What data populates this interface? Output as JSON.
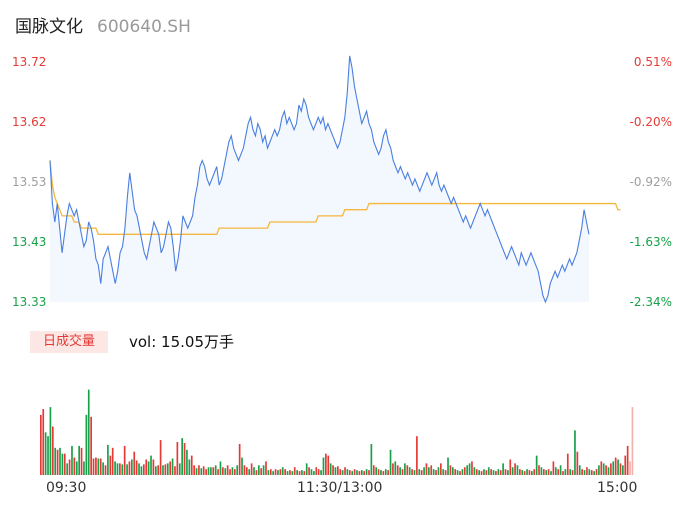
{
  "header": {
    "name": "国脉文化",
    "code": "600640.SH"
  },
  "tab": {
    "label": "日成交量"
  },
  "volume_readout": "vol: 15.05万手",
  "x_labels": [
    "09:30",
    "11:30/13:00",
    "15:00"
  ],
  "colors": {
    "price_line": "#4a7fe0",
    "avg_line": "#f5b73b",
    "area_fill": "#f3f7fe",
    "up": "#e53935",
    "down": "#19a04a",
    "neutral": "#9e9e9e"
  },
  "chart_data": [
    {
      "type": "line",
      "title": "",
      "y_left_labels": [
        "13.72",
        "13.62",
        "13.53",
        "13.43",
        "13.33"
      ],
      "y_right_labels": [
        "0.51%",
        "-0.20%",
        "-0.92%",
        "-1.63%",
        "-2.34%"
      ],
      "ylim": [
        13.33,
        13.72
      ],
      "x_count": 241,
      "series": [
        {
          "name": "price",
          "values": [
            13.56,
            13.49,
            13.46,
            13.49,
            13.45,
            13.41,
            13.44,
            13.47,
            13.49,
            13.48,
            13.47,
            13.48,
            13.46,
            13.44,
            13.42,
            13.43,
            13.46,
            13.45,
            13.43,
            13.4,
            13.39,
            13.36,
            13.4,
            13.41,
            13.42,
            13.4,
            13.38,
            13.36,
            13.38,
            13.41,
            13.42,
            13.45,
            13.5,
            13.54,
            13.51,
            13.48,
            13.47,
            13.45,
            13.43,
            13.41,
            13.4,
            13.42,
            13.44,
            13.46,
            13.45,
            13.44,
            13.41,
            13.42,
            13.44,
            13.46,
            13.45,
            13.42,
            13.38,
            13.4,
            13.43,
            13.47,
            13.46,
            13.45,
            13.46,
            13.47,
            13.5,
            13.52,
            13.55,
            13.56,
            13.55,
            13.53,
            13.52,
            13.53,
            13.54,
            13.55,
            13.52,
            13.53,
            13.55,
            13.57,
            13.59,
            13.6,
            13.58,
            13.57,
            13.56,
            13.57,
            13.58,
            13.6,
            13.62,
            13.63,
            13.61,
            13.6,
            13.62,
            13.61,
            13.59,
            13.6,
            13.58,
            13.59,
            13.6,
            13.61,
            13.6,
            13.61,
            13.63,
            13.64,
            13.62,
            13.63,
            13.62,
            13.61,
            13.62,
            13.65,
            13.64,
            13.66,
            13.65,
            13.63,
            13.62,
            13.61,
            13.62,
            13.63,
            13.62,
            13.63,
            13.61,
            13.62,
            13.61,
            13.6,
            13.59,
            13.58,
            13.59,
            13.61,
            13.63,
            13.67,
            13.73,
            13.71,
            13.68,
            13.66,
            13.64,
            13.62,
            13.63,
            13.64,
            13.62,
            13.61,
            13.59,
            13.58,
            13.57,
            13.58,
            13.6,
            13.61,
            13.59,
            13.58,
            13.56,
            13.55,
            13.54,
            13.55,
            13.54,
            13.53,
            13.54,
            13.53,
            13.52,
            13.53,
            13.52,
            13.51,
            13.52,
            13.53,
            13.54,
            13.53,
            13.52,
            13.53,
            13.54,
            13.52,
            13.51,
            13.52,
            13.51,
            13.5,
            13.49,
            13.5,
            13.49,
            13.48,
            13.47,
            13.46,
            13.47,
            13.46,
            13.45,
            13.46,
            13.47,
            13.48,
            13.49,
            13.48,
            13.47,
            13.48,
            13.47,
            13.46,
            13.45,
            13.44,
            13.43,
            13.42,
            13.41,
            13.4,
            13.41,
            13.42,
            13.41,
            13.4,
            13.39,
            13.41,
            13.4,
            13.39,
            13.4,
            13.41,
            13.4,
            13.39,
            13.38,
            13.36,
            13.34,
            13.33,
            13.34,
            13.36,
            13.37,
            13.38,
            13.37,
            13.38,
            13.39,
            13.38,
            13.39,
            13.4,
            13.39,
            13.4,
            13.41,
            13.43,
            13.45,
            13.48,
            13.46,
            13.44
          ],
          "color": "#4a7fe0"
        },
        {
          "name": "average",
          "values": [
            13.56,
            13.52,
            13.5,
            13.49,
            13.48,
            13.47,
            13.47,
            13.47,
            13.47,
            13.47,
            13.46,
            13.46,
            13.46,
            13.45,
            13.45,
            13.45,
            13.45,
            13.45,
            13.45,
            13.45,
            13.44,
            13.44,
            13.44,
            13.44,
            13.44,
            13.44,
            13.44,
            13.44,
            13.44,
            13.44,
            13.44,
            13.44,
            13.44,
            13.44,
            13.44,
            13.44,
            13.44,
            13.44,
            13.44,
            13.44,
            13.44,
            13.44,
            13.44,
            13.44,
            13.44,
            13.44,
            13.44,
            13.44,
            13.44,
            13.44,
            13.44,
            13.44,
            13.44,
            13.44,
            13.44,
            13.44,
            13.44,
            13.44,
            13.44,
            13.44,
            13.44,
            13.44,
            13.44,
            13.44,
            13.44,
            13.44,
            13.44,
            13.44,
            13.44,
            13.44,
            13.45,
            13.45,
            13.45,
            13.45,
            13.45,
            13.45,
            13.45,
            13.45,
            13.45,
            13.45,
            13.45,
            13.45,
            13.45,
            13.45,
            13.45,
            13.45,
            13.45,
            13.45,
            13.45,
            13.45,
            13.45,
            13.46,
            13.46,
            13.46,
            13.46,
            13.46,
            13.46,
            13.46,
            13.46,
            13.46,
            13.46,
            13.46,
            13.46,
            13.46,
            13.46,
            13.46,
            13.46,
            13.46,
            13.46,
            13.46,
            13.46,
            13.47,
            13.47,
            13.47,
            13.47,
            13.47,
            13.47,
            13.47,
            13.47,
            13.47,
            13.47,
            13.47,
            13.48,
            13.48,
            13.48,
            13.48,
            13.48,
            13.48,
            13.48,
            13.48,
            13.48,
            13.48,
            13.49,
            13.49,
            13.49,
            13.49,
            13.49,
            13.49,
            13.49,
            13.49,
            13.49,
            13.49,
            13.49,
            13.49,
            13.49,
            13.49,
            13.49,
            13.49,
            13.49,
            13.49,
            13.49,
            13.49,
            13.49,
            13.49,
            13.49,
            13.49,
            13.49,
            13.49,
            13.49,
            13.49,
            13.49,
            13.49,
            13.49,
            13.49,
            13.49,
            13.49,
            13.49,
            13.49,
            13.49,
            13.49,
            13.49,
            13.49,
            13.49,
            13.49,
            13.49,
            13.49,
            13.49,
            13.49,
            13.49,
            13.49,
            13.49,
            13.49,
            13.49,
            13.49,
            13.49,
            13.49,
            13.49,
            13.49,
            13.49,
            13.49,
            13.49,
            13.49,
            13.49,
            13.49,
            13.49,
            13.49,
            13.49,
            13.49,
            13.49,
            13.49,
            13.49,
            13.49,
            13.49,
            13.49,
            13.49,
            13.49,
            13.49,
            13.49,
            13.49,
            13.49,
            13.49,
            13.49,
            13.49,
            13.49,
            13.49,
            13.49,
            13.49,
            13.49,
            13.49,
            13.49,
            13.49,
            13.49,
            13.49,
            13.49,
            13.49,
            13.49,
            13.49,
            13.49,
            13.49,
            13.49,
            13.49,
            13.49,
            13.49,
            13.49,
            13.49,
            13.48,
            13.48
          ],
          "color": "#f5b73b"
        }
      ]
    },
    {
      "type": "bar",
      "title": "",
      "series": [
        {
          "name": "volume",
          "values": [
            0.62,
            0.68,
            0.44,
            0.4,
            0.7,
            0.5,
            0.28,
            0.26,
            0.28,
            0.22,
            0.22,
            0.12,
            0.16,
            0.3,
            0.18,
            0.14,
            0.3,
            0.28,
            0.14,
            0.62,
            0.88,
            0.6,
            0.17,
            0.18,
            0.17,
            0.17,
            0.13,
            0.1,
            0.31,
            0.2,
            0.28,
            0.14,
            0.12,
            0.12,
            0.11,
            0.3,
            0.11,
            0.14,
            0.16,
            0.24,
            0.15,
            0.12,
            0.09,
            0.11,
            0.16,
            0.14,
            0.2,
            0.16,
            0.09,
            0.1,
            0.36,
            0.1,
            0.11,
            0.12,
            0.14,
            0.17,
            0.09,
            0.34,
            0.12,
            0.38,
            0.33,
            0.26,
            0.16,
            0.2,
            0.1,
            0.07,
            0.1,
            0.07,
            0.09,
            0.06,
            0.08,
            0.08,
            0.08,
            0.1,
            0.06,
            0.14,
            0.08,
            0.07,
            0.1,
            0.06,
            0.08,
            0.06,
            0.1,
            0.32,
            0.18,
            0.1,
            0.08,
            0.06,
            0.12,
            0.08,
            0.05,
            0.1,
            0.07,
            0.1,
            0.14,
            0.05,
            0.06,
            0.04,
            0.06,
            0.05,
            0.06,
            0.08,
            0.06,
            0.04,
            0.05,
            0.04,
            0.08,
            0.05,
            0.04,
            0.05,
            0.04,
            0.12,
            0.08,
            0.06,
            0.04,
            0.08,
            0.06,
            0.05,
            0.18,
            0.22,
            0.2,
            0.12,
            0.1,
            0.08,
            0.09,
            0.06,
            0.05,
            0.08,
            0.06,
            0.05,
            0.04,
            0.06,
            0.05,
            0.04,
            0.05,
            0.04,
            0.06,
            0.05,
            0.32,
            0.1,
            0.08,
            0.06,
            0.05,
            0.04,
            0.06,
            0.05,
            0.26,
            0.12,
            0.14,
            0.1,
            0.08,
            0.06,
            0.12,
            0.1,
            0.08,
            0.06,
            0.05,
            0.4,
            0.06,
            0.05,
            0.08,
            0.12,
            0.08,
            0.1,
            0.06,
            0.05,
            0.08,
            0.12,
            0.06,
            0.05,
            0.18,
            0.1,
            0.08,
            0.06,
            0.05,
            0.04,
            0.06,
            0.08,
            0.1,
            0.12,
            0.14,
            0.08,
            0.06,
            0.05,
            0.04,
            0.06,
            0.05,
            0.08,
            0.06,
            0.05,
            0.04,
            0.06,
            0.05,
            0.12,
            0.06,
            0.05,
            0.16,
            0.08,
            0.12,
            0.1,
            0.06,
            0.05,
            0.04,
            0.06,
            0.05,
            0.04,
            0.06,
            0.2,
            0.1,
            0.08,
            0.06,
            0.05,
            0.06,
            0.04,
            0.14,
            0.08,
            0.06,
            0.1,
            0.04,
            0.06,
            0.22,
            0.06,
            0.05,
            0.46,
            0.24,
            0.1,
            0.06,
            0.05,
            0.08,
            0.06,
            0.05,
            0.04,
            0.06,
            0.1,
            0.14,
            0.12,
            0.1,
            0.08,
            0.12,
            0.14,
            0.18,
            0.16,
            0.12,
            0.1,
            0.2,
            0.3,
            0.14,
            0.7
          ],
          "directions": [
            "u",
            "u",
            "d",
            "d",
            "d",
            "u",
            "d",
            "u",
            "d",
            "d",
            "u",
            "d",
            "u",
            "d",
            "u",
            "d",
            "d",
            "u",
            "d",
            "d",
            "d",
            "u",
            "u",
            "u",
            "d",
            "u",
            "d",
            "u",
            "d",
            "u",
            "u",
            "d",
            "d",
            "u",
            "d",
            "u",
            "d",
            "u",
            "d",
            "u",
            "u",
            "d",
            "d",
            "u",
            "u",
            "d",
            "d",
            "u",
            "d",
            "u",
            "u",
            "d",
            "u",
            "d",
            "u",
            "d",
            "u",
            "u",
            "d",
            "d",
            "u",
            "d",
            "d",
            "u",
            "u",
            "d",
            "u",
            "d",
            "u",
            "u",
            "d",
            "d",
            "u",
            "d",
            "u",
            "d",
            "u",
            "d",
            "u",
            "u",
            "d",
            "u",
            "d",
            "u",
            "d",
            "u",
            "u",
            "d",
            "u",
            "d",
            "u",
            "d",
            "u",
            "d",
            "u",
            "d",
            "u",
            "d",
            "u",
            "d",
            "u",
            "d",
            "u",
            "d",
            "u",
            "d",
            "u",
            "d",
            "u",
            "d",
            "u",
            "d",
            "u",
            "d",
            "d",
            "u",
            "u",
            "d",
            "d",
            "u",
            "u",
            "d",
            "u",
            "d",
            "u",
            "u",
            "d",
            "u",
            "d",
            "u",
            "d",
            "u",
            "d",
            "u",
            "d",
            "u",
            "d",
            "u",
            "d",
            "u",
            "d",
            "u",
            "d",
            "u",
            "d",
            "u",
            "d",
            "u",
            "d",
            "u",
            "d",
            "u",
            "d",
            "u",
            "d",
            "u",
            "d",
            "u",
            "d",
            "u",
            "d",
            "u",
            "d",
            "u",
            "d",
            "u",
            "d",
            "u",
            "d",
            "u",
            "d",
            "u",
            "d",
            "u",
            "d",
            "u",
            "d",
            "u",
            "d",
            "d",
            "u",
            "d",
            "u",
            "d",
            "u",
            "d",
            "u",
            "d",
            "u",
            "d",
            "u",
            "d",
            "u",
            "d",
            "u",
            "d",
            "u",
            "d",
            "u",
            "d",
            "u",
            "d",
            "u",
            "d",
            "u",
            "d",
            "u",
            "d",
            "u",
            "d",
            "u",
            "d",
            "u",
            "d",
            "u",
            "d",
            "u",
            "d",
            "u",
            "d",
            "u",
            "d",
            "u",
            "d",
            "u",
            "d",
            "u",
            "d",
            "u",
            "d",
            "u",
            "d",
            "u",
            "d",
            "u",
            "d",
            "u",
            "d",
            "u",
            "d",
            "u",
            "d",
            "u",
            "d",
            "u",
            "u",
            "n"
          ]
        }
      ]
    }
  ]
}
